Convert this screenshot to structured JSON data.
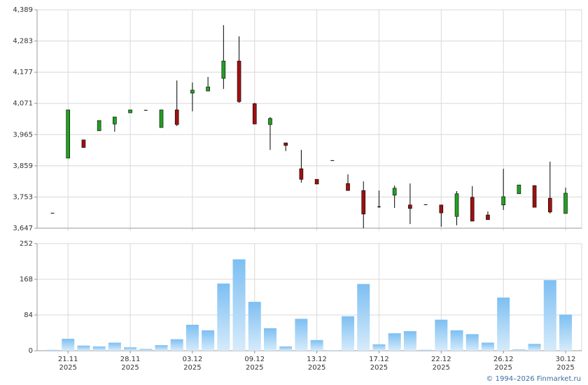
{
  "chart_data": [
    {
      "type": "candlestick",
      "open": [
        3699,
        3885,
        3947,
        3978,
        4001,
        4039,
        4049,
        3989,
        4049,
        4106,
        4113,
        4156,
        4215,
        4070,
        3999,
        3937,
        3849,
        3813,
        3878,
        3799,
        3775,
        3721,
        3759,
        3726,
        3728,
        3726,
        3687,
        3752,
        3692,
        3726,
        3764,
        3792,
        3749,
        3697
      ],
      "high": [
        3699,
        4049,
        3947,
        4013,
        4025,
        4049,
        4049,
        4049,
        4149,
        4142,
        4161,
        4337,
        4299,
        4073,
        4025,
        3937,
        3913,
        3813,
        3878,
        3830,
        3806,
        3775,
        3792,
        3799,
        3728,
        3726,
        3773,
        3790,
        3704,
        3849,
        3794,
        3792,
        3873,
        3785
      ],
      "low": [
        3699,
        3885,
        3921,
        3978,
        3975,
        4039,
        4049,
        3989,
        3994,
        4044,
        4113,
        4120,
        4073,
        4001,
        3913,
        3909,
        3802,
        3797,
        3878,
        3775,
        3647,
        3716,
        3716,
        3661,
        3728,
        3652,
        3657,
        3671,
        3676,
        3709,
        3764,
        3718,
        3697,
        3697
      ],
      "close": [
        3699,
        4049,
        3921,
        4013,
        4025,
        4049,
        4049,
        4049,
        3999,
        4116,
        4127,
        4215,
        4077,
        4001,
        4020,
        3928,
        3813,
        3797,
        3878,
        3775,
        3695,
        3721,
        3783,
        3714,
        3728,
        3699,
        3764,
        3671,
        3676,
        3754,
        3794,
        3718,
        3702,
        3766
      ],
      "up_color": "#22a022",
      "down_color": "#a01010",
      "ylim": [
        3647,
        4389
      ],
      "yticks": [
        {
          "value": 3647,
          "label": "3,647"
        },
        {
          "value": 3753,
          "label": "3,753"
        },
        {
          "value": 3859,
          "label": "3,859"
        },
        {
          "value": 3965,
          "label": "3,965"
        },
        {
          "value": 4071,
          "label": "4,071"
        },
        {
          "value": 4177,
          "label": "4,177"
        },
        {
          "value": 4283,
          "label": "4,283"
        },
        {
          "value": 4389,
          "label": "4,389"
        }
      ],
      "grid": true
    },
    {
      "type": "bar",
      "categories": [
        null,
        [
          "21.11",
          "2025"
        ],
        null,
        null,
        null,
        [
          "28.11",
          "2025"
        ],
        null,
        null,
        null,
        [
          "03.12",
          "2025"
        ],
        null,
        null,
        null,
        [
          "09.12",
          "2025"
        ],
        null,
        null,
        null,
        [
          "13.12",
          "2025"
        ],
        null,
        null,
        null,
        [
          "17.12",
          "2025"
        ],
        null,
        null,
        null,
        [
          "22.12",
          "2025"
        ],
        null,
        null,
        null,
        [
          "26.12",
          "2025"
        ],
        null,
        null,
        null,
        [
          "30.12",
          "2025"
        ]
      ],
      "values": [
        2,
        28,
        12,
        10,
        19,
        8,
        4,
        13,
        27,
        61,
        48,
        158,
        215,
        115,
        53,
        10,
        75,
        25,
        1,
        81,
        157,
        15,
        41,
        46,
        2,
        73,
        48,
        39,
        19,
        125,
        3,
        16,
        166,
        85
      ],
      "color": "#8cc8f4",
      "ylim": [
        0,
        252
      ],
      "yticks": [
        0,
        84,
        168,
        252
      ],
      "grid": true
    }
  ],
  "footer": "© 1994–2026 Finmarket.ru"
}
